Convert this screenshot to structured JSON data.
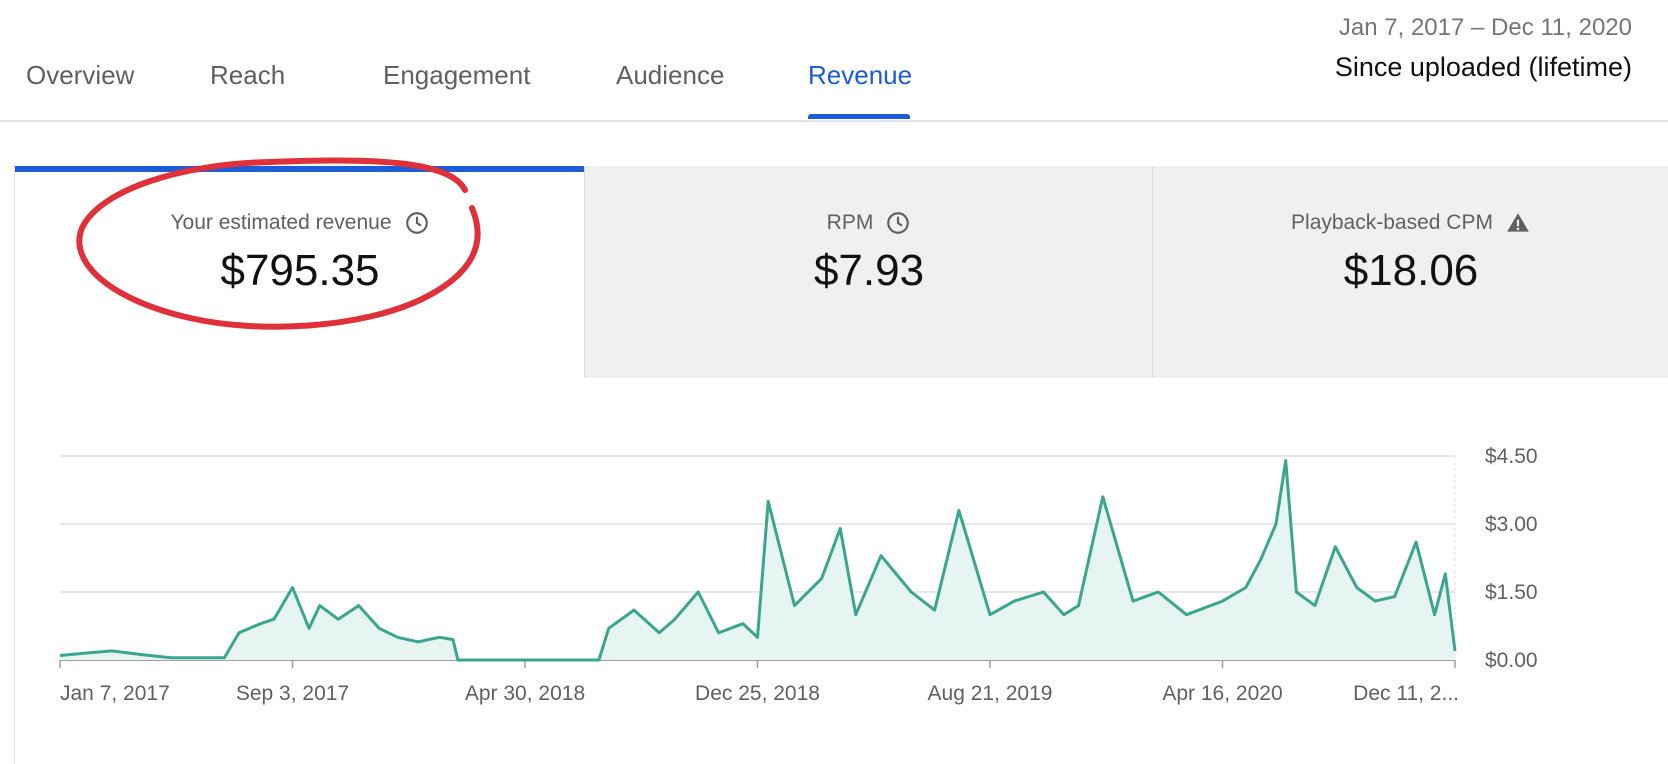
{
  "tabs": [
    {
      "label": "Overview",
      "active": false
    },
    {
      "label": "Reach",
      "active": false
    },
    {
      "label": "Engagement",
      "active": false
    },
    {
      "label": "Audience",
      "active": false
    },
    {
      "label": "Revenue",
      "active": true
    }
  ],
  "date_range": {
    "dates": "Jan 7, 2017 – Dec 11, 2020",
    "label": "Since uploaded (lifetime)"
  },
  "metrics": [
    {
      "title": "Your estimated revenue",
      "value": "$795.35",
      "icon": "clock-icon",
      "selected": true
    },
    {
      "title": "RPM",
      "value": "$7.93",
      "icon": "clock-icon",
      "selected": false
    },
    {
      "title": "Playback-based CPM",
      "value": "$18.06",
      "icon": "warning-icon",
      "selected": false
    }
  ],
  "colors": {
    "accent": "#1c5cd6",
    "series": "#3aa68e",
    "series_fill": "#e6f5f1",
    "annotation": "#e0303a"
  },
  "chart_data": {
    "type": "area",
    "x_ticks": [
      "Jan 7, 2017",
      "Sep 3, 2017",
      "Apr 30, 2018",
      "Dec 25, 2018",
      "Aug 21, 2019",
      "Apr 16, 2020",
      "Dec 11, 2..."
    ],
    "y_ticks": [
      "$0.00",
      "$1.50",
      "$3.00",
      "$4.50"
    ],
    "ylim": [
      0,
      4.5
    ],
    "grid": true,
    "series": [
      {
        "x": [
          "2017-01-07",
          "2017-02-01",
          "2017-03-01",
          "2017-04-01",
          "2017-05-01",
          "2017-06-01",
          "2017-06-25",
          "2017-07-10",
          "2017-08-01",
          "2017-08-15",
          "2017-09-03",
          "2017-09-20",
          "2017-10-01",
          "2017-10-20",
          "2017-11-10",
          "2017-12-01",
          "2017-12-20",
          "2018-01-10",
          "2018-02-01",
          "2018-02-15",
          "2018-02-20",
          "2018-03-01",
          "2018-04-01",
          "2018-04-30",
          "2018-06-01",
          "2018-07-15",
          "2018-07-25",
          "2018-08-20",
          "2018-09-15",
          "2018-10-01",
          "2018-10-25",
          "2018-11-15",
          "2018-12-10",
          "2018-12-25",
          "2019-01-05",
          "2019-02-01",
          "2019-03-01",
          "2019-03-20",
          "2019-04-05",
          "2019-05-01",
          "2019-06-01",
          "2019-06-25",
          "2019-07-20",
          "2019-08-21",
          "2019-09-15",
          "2019-10-15",
          "2019-11-05",
          "2019-11-20",
          "2019-12-15",
          "2020-01-15",
          "2020-02-10",
          "2020-03-10",
          "2020-04-16",
          "2020-05-10",
          "2020-05-25",
          "2020-06-10",
          "2020-06-20",
          "2020-07-01",
          "2020-07-20",
          "2020-08-10",
          "2020-09-01",
          "2020-09-20",
          "2020-10-10",
          "2020-11-01",
          "2020-11-20",
          "2020-12-01",
          "2020-12-11"
        ],
        "y": [
          0.1,
          0.15,
          0.2,
          0.12,
          0.05,
          0.05,
          0.05,
          0.6,
          0.8,
          0.9,
          1.6,
          0.7,
          1.2,
          0.9,
          1.2,
          0.7,
          0.5,
          0.4,
          0.5,
          0.45,
          0.0,
          0.0,
          0.0,
          0.0,
          0.0,
          0.0,
          0.7,
          1.1,
          0.6,
          0.9,
          1.5,
          0.6,
          0.8,
          0.5,
          3.5,
          1.2,
          1.8,
          2.9,
          1.0,
          2.3,
          1.5,
          1.1,
          3.3,
          1.0,
          1.3,
          1.5,
          1.0,
          1.2,
          3.6,
          1.3,
          1.5,
          1.0,
          1.3,
          1.6,
          2.2,
          3.0,
          4.4,
          1.5,
          1.2,
          2.5,
          1.6,
          1.3,
          1.4,
          2.6,
          1.0,
          1.9,
          0.2
        ]
      }
    ]
  }
}
